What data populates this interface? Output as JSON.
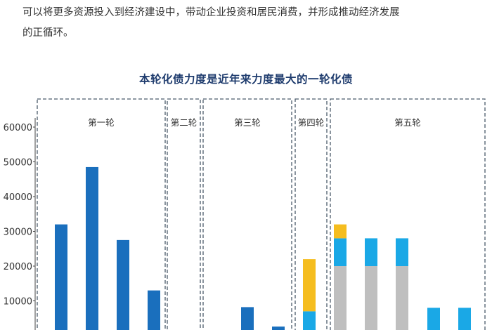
{
  "article": {
    "line1": "可以将更多资源投入到经济建设中，带动企业投资和居民消费，并形成推动经济发展",
    "line2": "的正循环。"
  },
  "chart_data": {
    "type": "bar",
    "title": "本轮化债力度是近年来力度最大的一轮化债",
    "xlabel": "",
    "ylabel": "",
    "ylim": [
      0,
      60000
    ],
    "y_ticks": [
      "60000",
      "50000",
      "40000",
      "30000",
      "20000",
      "10000"
    ],
    "y_tick_values": [
      60000,
      50000,
      40000,
      30000,
      20000,
      10000
    ],
    "grid": false,
    "legend": "none",
    "colors": {
      "blue": "#1a6fbd",
      "cyan": "#1aa8e6",
      "yellow": "#f5bd1f",
      "gray": "#bfbfbf",
      "frame": "#4a5a6a"
    },
    "rounds": [
      {
        "label": "第一轮",
        "bars": [
          {
            "segments": [
              {
                "value": 32000,
                "color": "blue"
              }
            ]
          },
          {
            "segments": [
              {
                "value": 48500,
                "color": "blue"
              }
            ]
          },
          {
            "segments": [
              {
                "value": 27500,
                "color": "blue"
              }
            ]
          },
          {
            "segments": [
              {
                "value": 13000,
                "color": "blue"
              }
            ]
          }
        ]
      },
      {
        "label": "第二轮",
        "bars": []
      },
      {
        "label": "第三轮",
        "bars": [
          {
            "segments": [
              {
                "value": 8200,
                "color": "blue"
              }
            ]
          },
          {
            "segments": [
              {
                "value": 2600,
                "color": "blue"
              }
            ]
          }
        ]
      },
      {
        "label": "第四轮",
        "bars": [
          {
            "segments": [
              {
                "value": 7000,
                "color": "cyan"
              },
              {
                "value": 15000,
                "color": "yellow"
              }
            ]
          }
        ]
      },
      {
        "label": "第五轮",
        "bars": [
          {
            "segments": [
              {
                "value": 20000,
                "color": "gray"
              },
              {
                "value": 8000,
                "color": "cyan"
              },
              {
                "value": 4000,
                "color": "yellow"
              }
            ]
          },
          {
            "segments": [
              {
                "value": 20000,
                "color": "gray"
              },
              {
                "value": 8000,
                "color": "cyan"
              }
            ]
          },
          {
            "segments": [
              {
                "value": 20000,
                "color": "gray"
              },
              {
                "value": 8000,
                "color": "cyan"
              }
            ]
          },
          {
            "segments": [
              {
                "value": 8000,
                "color": "cyan"
              }
            ]
          },
          {
            "segments": [
              {
                "value": 8000,
                "color": "cyan"
              }
            ]
          }
        ]
      }
    ]
  }
}
